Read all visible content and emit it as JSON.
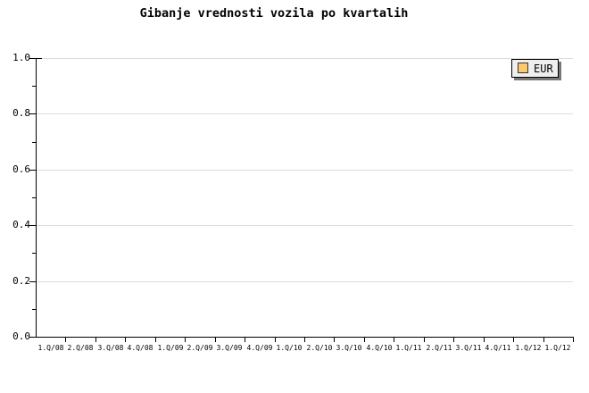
{
  "chart": {
    "title": "Gibanje vrednosti vozila po kvartalih",
    "y_axis": {
      "tick_labels": [
        "1.0",
        "0.8",
        "0.6",
        "0.4",
        "0.2",
        "0.0"
      ]
    },
    "legend": {
      "label": "EUR"
    }
  },
  "chart_data": {
    "type": "line",
    "title": "Gibanje vrednosti vozila po kvartalih",
    "categories": [
      "1.Q/08",
      "2.Q/08",
      "3.Q/08",
      "4.Q/08",
      "1.Q/09",
      "2.Q/09",
      "3.Q/09",
      "4.Q/09",
      "1.Q/10",
      "2.Q/10",
      "3.Q/10",
      "4.Q/10",
      "1.Q/11",
      "2.Q/11",
      "3.Q/11",
      "4.Q/11",
      "1.Q/12",
      "1.Q/12"
    ],
    "series": [
      {
        "name": "EUR",
        "color": "#FCC96E",
        "values": []
      }
    ],
    "xlabel": "",
    "ylabel": "",
    "ylim": [
      0,
      1
    ],
    "y_tick_interval": 0.2,
    "y_minor_tick_interval": 0.1,
    "grid": "horizontal",
    "legend_position": "top-right"
  },
  "colors": {
    "background": "#FFFFFF",
    "axis": "#000000",
    "grid": "#DCDCDC",
    "text": "#000000",
    "legend_bg": "#EFEFEF",
    "legend_border": "#000000",
    "legend_shadow": "#787878",
    "series_eur": "#FCC96E"
  }
}
